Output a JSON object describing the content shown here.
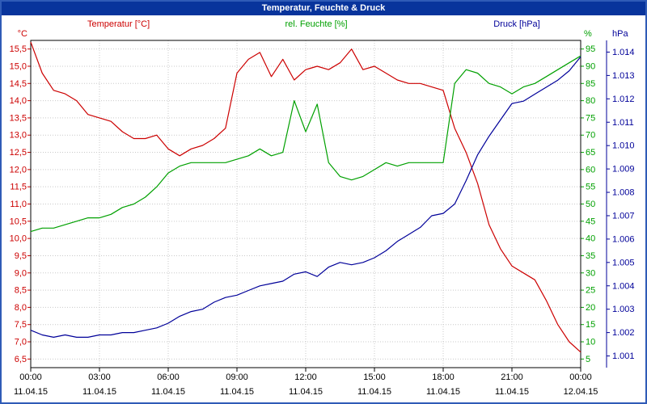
{
  "window": {
    "title": "Temperatur, Feuchte & Druck"
  },
  "legend": {
    "temperature": "Temperatur [°C]",
    "humidity": "rel. Feuchte [%]",
    "pressure": "Druck [hPa]"
  },
  "units": {
    "temperature": "°C",
    "humidity": "%",
    "pressure": "hPa"
  },
  "colors": {
    "temperature": "#cc0000",
    "humidity": "#00a000",
    "pressure": "#000099",
    "grid": "#c9c9c9",
    "plot_border": "#000000",
    "titlebar": "#08349c",
    "frame": "#2f5bb7",
    "axis_text": "#000000"
  },
  "chart_data": {
    "type": "line",
    "title": "Temperatur, Feuchte & Druck",
    "x_tick_labels": [
      "00:00",
      "03:00",
      "06:00",
      "09:00",
      "12:00",
      "15:00",
      "18:00",
      "21:00",
      "00:00"
    ],
    "x_date_labels": [
      "11.04.15",
      "11.04.15",
      "11.04.15",
      "11.04.15",
      "11.04.15",
      "11.04.15",
      "11.04.15",
      "11.04.15",
      "12.04.15"
    ],
    "x_hours": [
      0,
      0.5,
      1,
      1.5,
      2,
      2.5,
      3,
      3.5,
      4,
      4.5,
      5,
      5.5,
      6,
      6.5,
      7,
      7.5,
      8,
      8.5,
      9,
      9.5,
      10,
      10.5,
      11,
      11.5,
      12,
      12.5,
      13,
      13.5,
      14,
      14.5,
      15,
      15.5,
      16,
      16.5,
      17,
      17.5,
      18,
      18.5,
      19,
      19.5,
      20,
      20.5,
      21,
      21.5,
      22,
      22.5,
      23,
      23.5,
      24
    ],
    "y_axes": {
      "temperature": {
        "range": [
          6.5,
          15.5
        ],
        "tick_step": 0.5,
        "tick_labels": [
          "15,5",
          "15,0",
          "14,5",
          "14,0",
          "13,5",
          "13,0",
          "12,5",
          "12,0",
          "11,5",
          "11,0",
          "10,5",
          "10,0",
          "9,5",
          "9,0",
          "8,5",
          "8,0",
          "7,5",
          "7,0",
          "6,5"
        ]
      },
      "humidity": {
        "range": [
          5,
          95
        ],
        "tick_step": 5,
        "tick_labels": [
          "95",
          "90",
          "85",
          "80",
          "75",
          "70",
          "65",
          "60",
          "55",
          "50",
          "45",
          "40",
          "35",
          "30",
          "25",
          "20",
          "15",
          "10",
          "5"
        ]
      },
      "pressure": {
        "range": [
          1001,
          1014
        ],
        "tick_step": 1,
        "tick_labels": [
          "1.014",
          "1.013",
          "1.012",
          "1.011",
          "1.010",
          "1.009",
          "1.008",
          "1.007",
          "1.006",
          "1.005",
          "1.004",
          "1.003",
          "1.002",
          "1.001"
        ]
      }
    },
    "series": [
      {
        "name": "Temperatur",
        "unit": "°C",
        "axis": "temperature",
        "values": [
          15.7,
          14.8,
          14.3,
          14.2,
          14.0,
          13.6,
          13.5,
          13.4,
          13.1,
          12.9,
          12.9,
          13.0,
          12.6,
          12.4,
          12.6,
          12.7,
          12.9,
          13.2,
          14.8,
          15.2,
          15.4,
          14.7,
          15.2,
          14.6,
          14.9,
          15.0,
          14.9,
          15.1,
          15.5,
          14.9,
          15.0,
          14.8,
          14.6,
          14.5,
          14.5,
          14.4,
          14.3,
          13.2,
          12.5,
          11.6,
          10.4,
          9.7,
          9.2,
          9.0,
          8.8,
          8.2,
          7.5,
          7.0,
          6.7
        ]
      },
      {
        "name": "rel. Feuchte",
        "unit": "%",
        "axis": "humidity",
        "values": [
          42,
          43,
          43,
          44,
          45,
          46,
          46,
          47,
          49,
          50,
          52,
          55,
          59,
          61,
          62,
          62,
          62,
          62,
          63,
          64,
          66,
          64,
          65,
          80,
          71,
          79,
          62,
          58,
          57,
          58,
          60,
          62,
          61,
          62,
          62,
          62,
          62,
          85,
          89,
          88,
          85,
          84,
          82,
          84,
          85,
          87,
          89,
          91,
          93
        ]
      },
      {
        "name": "Druck",
        "unit": "hPa",
        "axis": "pressure",
        "values": [
          1002.1,
          1001.9,
          1001.8,
          1001.9,
          1001.8,
          1001.8,
          1001.9,
          1001.9,
          1002.0,
          1002.0,
          1002.1,
          1002.2,
          1002.4,
          1002.7,
          1002.9,
          1003.0,
          1003.3,
          1003.5,
          1003.6,
          1003.8,
          1004.0,
          1004.1,
          1004.2,
          1004.5,
          1004.6,
          1004.4,
          1004.8,
          1005.0,
          1004.9,
          1005.0,
          1005.2,
          1005.5,
          1005.9,
          1006.2,
          1006.5,
          1007.0,
          1007.1,
          1007.5,
          1008.5,
          1009.6,
          1010.4,
          1011.1,
          1011.8,
          1011.9,
          1012.2,
          1012.5,
          1012.8,
          1013.2,
          1013.8
        ]
      }
    ]
  }
}
